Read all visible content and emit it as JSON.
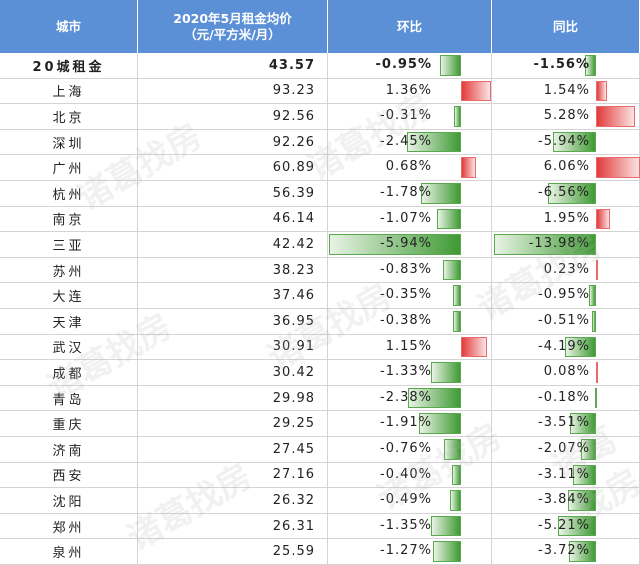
{
  "watermark": "诸葛找房",
  "table": {
    "header": [
      "城市",
      [
        "2020年5月租金均价",
        "（元/平方米/月）"
      ],
      "环比",
      "同比"
    ],
    "rows": [
      [
        "20城租金",
        43.57,
        {
          "value": -0.95,
          "label": "-0.95%"
        },
        {
          "value": -1.56,
          "label": "-1.56%"
        }
      ],
      [
        "上海",
        93.23,
        {
          "value": 1.36,
          "label": "1.36%"
        },
        {
          "value": 1.54,
          "label": "1.54%"
        }
      ],
      [
        "北京",
        92.56,
        {
          "value": -0.31,
          "label": "-0.31%"
        },
        {
          "value": 5.28,
          "label": "5.28%"
        }
      ],
      [
        "深圳",
        92.26,
        {
          "value": -2.45,
          "label": "-2.45%"
        },
        {
          "value": -5.94,
          "label": "-5.94%"
        }
      ],
      [
        "广州",
        60.89,
        {
          "value": 0.68,
          "label": "0.68%"
        },
        {
          "value": 6.06,
          "label": "6.06%"
        }
      ],
      [
        "杭州",
        56.39,
        {
          "value": -1.78,
          "label": "-1.78%"
        },
        {
          "value": -6.56,
          "label": "-6.56%"
        }
      ],
      [
        "南京",
        46.14,
        {
          "value": -1.07,
          "label": "-1.07%"
        },
        {
          "value": 1.95,
          "label": "1.95%"
        }
      ],
      [
        "三亚",
        42.42,
        {
          "value": -5.94,
          "label": "-5.94%"
        },
        {
          "value": -13.98,
          "label": "-13.98%"
        }
      ],
      [
        "苏州",
        38.23,
        {
          "value": -0.83,
          "label": "-0.83%"
        },
        {
          "value": 0.23,
          "label": "0.23%"
        }
      ],
      [
        "大连",
        37.46,
        {
          "value": -0.35,
          "label": "-0.35%"
        },
        {
          "value": -0.95,
          "label": "-0.95%"
        }
      ],
      [
        "天津",
        36.95,
        {
          "value": -0.38,
          "label": "-0.38%"
        },
        {
          "value": -0.51,
          "label": "-0.51%"
        }
      ],
      [
        "武汉",
        30.91,
        {
          "value": 1.15,
          "label": "1.15%"
        },
        {
          "value": -4.19,
          "label": "-4.19%"
        }
      ],
      [
        "成都",
        30.42,
        {
          "value": -1.33,
          "label": "-1.33%"
        },
        {
          "value": 0.08,
          "label": "0.08%"
        }
      ],
      [
        "青岛",
        29.98,
        {
          "value": -2.38,
          "label": "-2.38%"
        },
        {
          "value": -0.18,
          "label": "-0.18%"
        }
      ],
      [
        "重庆",
        29.25,
        {
          "value": -1.91,
          "label": "-1.91%"
        },
        {
          "value": -3.51,
          "label": "-3.51%"
        }
      ],
      [
        "济南",
        27.45,
        {
          "value": -0.76,
          "label": "-0.76%"
        },
        {
          "value": -2.07,
          "label": "-2.07%"
        }
      ],
      [
        "西安",
        27.16,
        {
          "value": -0.4,
          "label": "-0.40%"
        },
        {
          "value": -3.11,
          "label": "-3.11%"
        }
      ],
      [
        "沈阳",
        26.32,
        {
          "value": -0.49,
          "label": "-0.49%"
        },
        {
          "value": -3.84,
          "label": "-3.84%"
        }
      ],
      [
        "郑州",
        26.31,
        {
          "value": -1.35,
          "label": "-1.35%"
        },
        {
          "value": -5.21,
          "label": "-5.21%"
        }
      ],
      [
        "泉州",
        25.59,
        {
          "value": -1.27,
          "label": "-1.27%"
        },
        {
          "value": -3.72,
          "label": "-3.72%"
        }
      ]
    ]
  }
}
